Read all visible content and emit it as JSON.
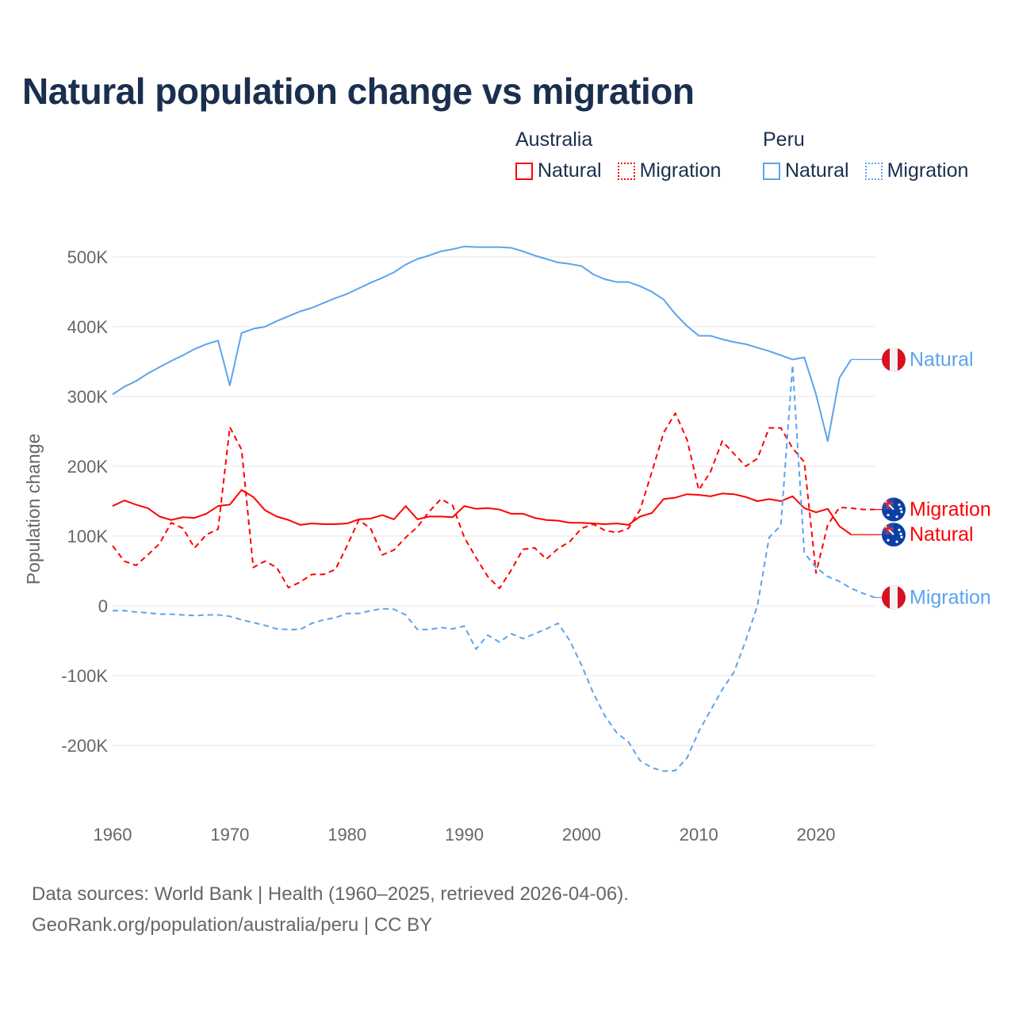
{
  "title": "Natural population change vs migration",
  "legend": {
    "groups": [
      {
        "name": "Australia",
        "items": [
          {
            "label": "Natural",
            "style": "solid",
            "color": "#ff0000"
          },
          {
            "label": "Migration",
            "style": "dotted",
            "color": "#ff0000"
          }
        ]
      },
      {
        "name": "Peru",
        "items": [
          {
            "label": "Natural",
            "style": "solid",
            "color": "#5ba4ee"
          },
          {
            "label": "Migration",
            "style": "dotted",
            "color": "#5ba4ee"
          }
        ]
      }
    ]
  },
  "footer": {
    "line1": "Data sources: World Bank | Health (1960–2025, retrieved 2026-04-06).",
    "line2": "GeoRank.org/population/australia/peru | CC BY"
  },
  "chart_data": {
    "type": "line",
    "title": "Natural population change vs migration",
    "xlabel": "",
    "ylabel": "Population change",
    "xlim": [
      1960,
      2025
    ],
    "ylim": [
      -250000,
      520000
    ],
    "grid": true,
    "legend_position": "top-right",
    "x_ticks": [
      1960,
      1970,
      1980,
      1990,
      2000,
      2010,
      2020
    ],
    "x_tick_labels": [
      "1960",
      "1970",
      "1980",
      "1990",
      "2000",
      "2010",
      "2020"
    ],
    "y_ticks": [
      500000,
      400000,
      300000,
      200000,
      100000,
      0,
      -100000,
      -200000
    ],
    "y_tick_labels": [
      "500K",
      "400K",
      "300K",
      "200K",
      "100K",
      "0",
      "-100K",
      "-200K"
    ],
    "series": [
      {
        "name": "Peru Natural",
        "end_label": "Natural",
        "country": "Peru",
        "color": "#5ba4ee",
        "dashed": false,
        "start_year": 1960,
        "values": [
          303,
          314,
          322,
          333,
          342,
          351,
          359,
          368,
          375,
          380,
          316,
          391,
          397,
          400,
          408,
          415,
          422,
          427,
          434,
          441,
          447,
          455,
          463,
          470,
          478,
          489,
          497,
          502,
          508,
          511,
          515,
          514,
          514,
          514,
          513,
          508,
          502,
          497,
          492,
          490,
          487,
          475,
          468,
          464,
          464,
          458,
          450,
          439,
          418,
          401,
          387,
          387,
          382,
          378,
          375,
          370,
          365,
          359,
          353,
          356,
          303,
          236,
          327,
          353
        ]
      },
      {
        "name": "Australia Migration",
        "end_label": "Migration",
        "country": "Australia",
        "color": "#ff0000",
        "dashed": true,
        "start_year": 1960,
        "values": [
          86,
          64,
          58,
          73,
          89,
          119,
          111,
          83,
          102,
          110,
          256,
          224,
          55,
          64,
          55,
          26,
          34,
          45,
          45,
          52,
          86,
          123,
          111,
          73,
          80,
          98,
          113,
          135,
          153,
          144,
          98,
          69,
          42,
          25,
          51,
          81,
          83,
          67,
          82,
          92,
          111,
          117,
          108,
          105,
          111,
          138,
          192,
          248,
          276,
          238,
          166,
          192,
          236,
          218,
          200,
          211,
          255,
          255,
          226,
          206,
          47,
          116,
          141,
          140,
          138,
          138
        ]
      },
      {
        "name": "Australia Natural",
        "end_label": "Natural",
        "country": "Australia",
        "color": "#ff0000",
        "dashed": false,
        "start_year": 1960,
        "values": [
          143,
          151,
          145,
          140,
          128,
          123,
          127,
          126,
          132,
          143,
          145,
          166,
          156,
          137,
          128,
          123,
          116,
          118,
          117,
          117,
          118,
          124,
          125,
          130,
          124,
          143,
          124,
          128,
          128,
          127,
          143,
          139,
          140,
          138,
          132,
          132,
          126,
          123,
          122,
          119,
          119,
          118,
          117,
          118,
          116,
          128,
          133,
          153,
          155,
          160,
          159,
          157,
          161,
          160,
          156,
          150,
          153,
          150,
          157,
          140,
          134,
          139,
          114,
          102
        ]
      },
      {
        "name": "Peru Migration",
        "end_label": "Migration",
        "country": "Peru",
        "color": "#5ba4ee",
        "dashed": true,
        "start_year": 1960,
        "values": [
          -7,
          -7,
          -9,
          -10,
          -12,
          -12,
          -13,
          -14,
          -13,
          -13,
          -15,
          -20,
          -24,
          -28,
          -33,
          -34,
          -34,
          -25,
          -20,
          -17,
          -11,
          -11,
          -7,
          -4,
          -5,
          -13,
          -34,
          -34,
          -31,
          -33,
          -29,
          -62,
          -42,
          -52,
          -40,
          -47,
          -40,
          -33,
          -25,
          -50,
          -85,
          -125,
          -158,
          -182,
          -195,
          -222,
          -232,
          -237,
          -236,
          -218,
          -180,
          -150,
          -120,
          -95,
          -50,
          0,
          98,
          115,
          345,
          76,
          55,
          42,
          35,
          25,
          18,
          12
        ]
      }
    ],
    "value_unit": "thousands"
  }
}
